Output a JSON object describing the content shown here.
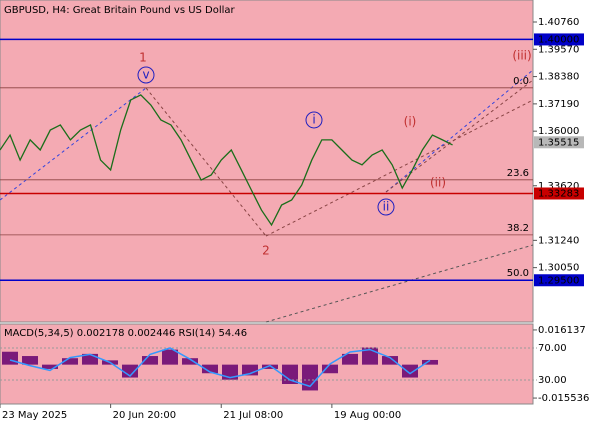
{
  "chart_data": [
    {
      "type": "line",
      "title": "GBPUSD, H4:  Great Britain Pound vs US Dollar",
      "values": [
        1.3518,
        1.3583,
        1.3474,
        1.3562,
        1.3518,
        1.3605,
        1.3627,
        1.3562,
        1.3605,
        1.3627,
        1.3474,
        1.3431,
        1.3605,
        1.3736,
        1.3758,
        1.3714,
        1.3649,
        1.3627,
        1.3562,
        1.3474,
        1.3387,
        1.3409,
        1.3474,
        1.3518,
        1.3431,
        1.3343,
        1.3256,
        1.3191,
        1.3278,
        1.33,
        1.3365,
        1.3474,
        1.3562,
        1.3562,
        1.3518,
        1.3474,
        1.3453,
        1.3496,
        1.3518,
        1.3453,
        1.3352,
        1.3431,
        1.3518,
        1.3583,
        1.3562,
        1.354
      ],
      "color": "#1a6e1a",
      "xlim": [
        0,
        53
      ],
      "xticks": [
        {
          "value": 0,
          "label": "23 May 2025"
        },
        {
          "value": 11,
          "label": "20 Jun 20:00"
        },
        {
          "value": 22,
          "label": "21 Jul 08:00"
        },
        {
          "value": 33,
          "label": "19 Aug 00:00"
        }
      ],
      "ylim": [
        1.2768,
        1.41719
      ],
      "yticks": [
        {
          "value": 1.4076,
          "label": "1.40760"
        },
        {
          "value": 1.3957,
          "label": "1.39570"
        },
        {
          "value": 1.3838,
          "label": "1.38380"
        },
        {
          "value": 1.3719,
          "label": "1.37190"
        },
        {
          "value": 1.36,
          "label": "1.36000"
        },
        {
          "value": 1.3362,
          "label": "1.33620"
        },
        {
          "value": 1.3124,
          "label": "1.31240"
        },
        {
          "value": 1.3005,
          "label": "1.30050"
        }
      ],
      "levels": [
        {
          "value": 1.4,
          "label": "1.40000",
          "color": "#0000c8"
        },
        {
          "value": 1.33283,
          "label": "1.33283",
          "color": "#c80000"
        },
        {
          "value": 1.295,
          "label": "1.29500",
          "color": "#0000c8"
        },
        {
          "value": 1.35515,
          "label": "1.35515",
          "color": "#b8b8b8"
        }
      ],
      "fib_levels": [
        {
          "value": 1.3789,
          "label": "0.0"
        },
        {
          "value": 1.3388,
          "label": "23.6"
        },
        {
          "value": 1.3148,
          "label": "38.2"
        },
        {
          "value": 1.2951,
          "label": "50.0"
        }
      ],
      "waves": [
        "1",
        "v",
        "2",
        "i",
        "(i)",
        "ii",
        "(ii)",
        "(iii)"
      ]
    },
    {
      "type": "bar",
      "title": "MACD(5,34,5) 0.002178 0.002446 RSI(14) 54.46",
      "values": [
        0.006,
        0.004,
        -0.002,
        0.003,
        0.005,
        0.002,
        -0.006,
        0.004,
        0.007,
        0.003,
        -0.004,
        -0.007,
        -0.005,
        -0.002,
        -0.009,
        -0.012,
        -0.004,
        0.005,
        0.008,
        0.004,
        -0.006,
        0.002178
      ],
      "color": "#7a1a7a",
      "ylim": [
        -0.0183,
        0.0189
      ],
      "yticks": [
        {
          "value": 0.016137,
          "label": "0.016137"
        },
        {
          "value": -0.015536,
          "label": "-0.015536"
        }
      ],
      "rsi": {
        "values": [
          55,
          48,
          42,
          58,
          62,
          52,
          35,
          62,
          70,
          56,
          40,
          33,
          38,
          48,
          30,
          22,
          50,
          65,
          68,
          58,
          38,
          54.46
        ],
        "color": "#3399ff",
        "ylim": [
          0,
          100
        ],
        "yticks": [
          {
            "value": 70,
            "label": "70.00"
          },
          {
            "value": 30,
            "label": "30.00"
          }
        ]
      }
    }
  ]
}
